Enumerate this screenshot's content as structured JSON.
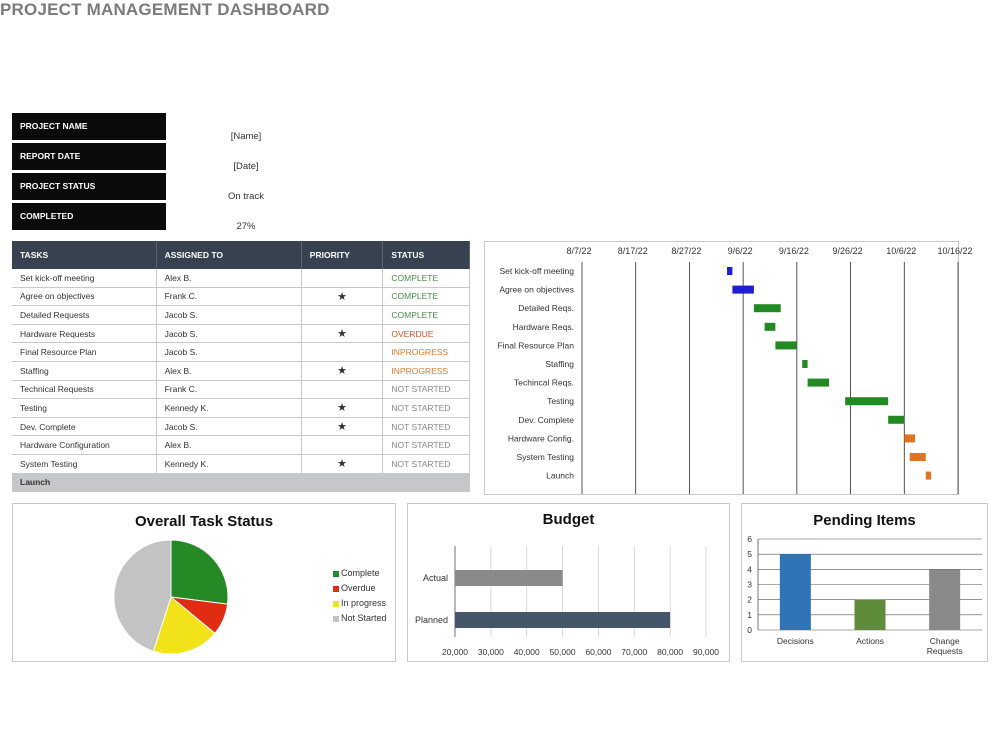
{
  "title": "PROJECT MANAGEMENT DASHBOARD",
  "info": [
    {
      "label": "PROJECT NAME",
      "value": "[Name]"
    },
    {
      "label": "REPORT DATE",
      "value": "[Date]"
    },
    {
      "label": "PROJECT STATUS",
      "value": "On track"
    },
    {
      "label": "COMPLETED",
      "value": "27%"
    }
  ],
  "tasks_table": {
    "headers": [
      "TASKS",
      "ASSIGNED TO",
      "PRIORITY",
      "STATUS"
    ],
    "rows": [
      {
        "task": "Set kick-off meeting",
        "assigned": "Alex B.",
        "priority": "",
        "status": "COMPLETE",
        "status_color": "#4a8a4a"
      },
      {
        "task": "Agree on objectives",
        "assigned": "Frank C.",
        "priority": "★",
        "status": "COMPLETE",
        "status_color": "#4a8a4a"
      },
      {
        "task": "Detailed Requests",
        "assigned": "Jacob S.",
        "priority": "",
        "status": "COMPLETE",
        "status_color": "#4a8a4a"
      },
      {
        "task": "Hardware Requests",
        "assigned": "Jacob S.",
        "priority": "★",
        "status": "OVERDUE",
        "status_color": "#d9531e"
      },
      {
        "task": "Final Resource Plan",
        "assigned": "Jacob S.",
        "priority": "",
        "status": "INPROGRESS",
        "status_color": "#e07b2e"
      },
      {
        "task": "Staffing",
        "assigned": "Alex B.",
        "priority": "★",
        "status": "INPROGRESS",
        "status_color": "#e07b2e"
      },
      {
        "task": "Technical Requests",
        "assigned": "Frank C.",
        "priority": "",
        "status": "NOT STARTED",
        "status_color": "#888888"
      },
      {
        "task": "Testing",
        "assigned": "Kennedy K.",
        "priority": "★",
        "status": "NOT STARTED",
        "status_color": "#888888"
      },
      {
        "task": "Dev. Complete",
        "assigned": "Jacob S.",
        "priority": "★",
        "status": "NOT STARTED",
        "status_color": "#888888"
      },
      {
        "task": "Hardware Configuration",
        "assigned": "Alex B.",
        "priority": "",
        "status": "NOT STARTED",
        "status_color": "#888888"
      },
      {
        "task": "System Testing",
        "assigned": "Kennedy K.",
        "priority": "★",
        "status": "NOT STARTED",
        "status_color": "#888888"
      },
      {
        "task": "Launch",
        "assigned": "",
        "priority": "",
        "status": "",
        "status_color": "#333333"
      }
    ]
  },
  "chart_data": [
    {
      "type": "gantt",
      "title": "",
      "x_ticks": [
        "8/7/22",
        "8/17/22",
        "8/27/22",
        "9/6/22",
        "9/16/22",
        "9/26/22",
        "10/6/22",
        "10/16/22"
      ],
      "x_range": [
        "8/7/22",
        "10/16/22"
      ],
      "grid": true,
      "tasks": [
        {
          "name": "Set kick-off meeting",
          "start": "9/3/22",
          "end": "9/4/22",
          "color": "#1f1fd1"
        },
        {
          "name": "Agree on objectives",
          "start": "9/4/22",
          "end": "9/8/22",
          "color": "#1f1fd1"
        },
        {
          "name": "Detailed Reqs.",
          "start": "9/8/22",
          "end": "9/13/22",
          "color": "#238a23"
        },
        {
          "name": "Hardware Reqs.",
          "start": "9/10/22",
          "end": "9/12/22",
          "color": "#238a23"
        },
        {
          "name": "Final Resource Plan",
          "start": "9/12/22",
          "end": "9/16/22",
          "color": "#238a23"
        },
        {
          "name": "Staffing",
          "start": "9/17/22",
          "end": "9/18/22",
          "color": "#238a23"
        },
        {
          "name": "Techincal Reqs.",
          "start": "9/18/22",
          "end": "9/22/22",
          "color": "#238a23"
        },
        {
          "name": "Testing",
          "start": "9/25/22",
          "end": "10/3/22",
          "color": "#238a23"
        },
        {
          "name": "Dev. Complete",
          "start": "10/3/22",
          "end": "10/6/22",
          "color": "#238a23"
        },
        {
          "name": "Hardware Config.",
          "start": "10/6/22",
          "end": "10/8/22",
          "color": "#e07420"
        },
        {
          "name": "System Testing",
          "start": "10/7/22",
          "end": "10/10/22",
          "color": "#e07420"
        },
        {
          "name": "Launch",
          "start": "10/10/22",
          "end": "10/11/22",
          "color": "#e07420"
        }
      ]
    },
    {
      "type": "pie",
      "title": "Overall Task Status",
      "legend": "right",
      "slices": [
        {
          "name": "Complete",
          "value": 27,
          "color": "#258a25"
        },
        {
          "name": "Overdue",
          "value": 9,
          "color": "#e12b12"
        },
        {
          "name": "In progress",
          "value": 19,
          "color": "#f2e219"
        },
        {
          "name": "Not Started",
          "value": 45,
          "color": "#c3c3c3"
        }
      ]
    },
    {
      "type": "bar",
      "orientation": "horizontal",
      "title": "Budget",
      "categories": [
        "Actual",
        "Planned"
      ],
      "values": [
        50000,
        80000
      ],
      "colors": [
        "#8a8a8a",
        "#46566a"
      ],
      "xlim": [
        20000,
        90000
      ],
      "x_ticks": [
        "20,000",
        "30,000",
        "40,000",
        "50,000",
        "60,000",
        "70,000",
        "80,000",
        "90,000"
      ],
      "grid": true
    },
    {
      "type": "bar",
      "title": "Pending Items",
      "categories": [
        "Decisions",
        "Actions",
        "Change Requests"
      ],
      "category_lines": [
        [
          "Decisions"
        ],
        [
          "Actions"
        ],
        [
          "Change",
          "Requests"
        ]
      ],
      "values": [
        5,
        2,
        4
      ],
      "colors": [
        "#2f74b5",
        "#5e8c3a",
        "#8a8a8a"
      ],
      "ylim": [
        0,
        6
      ],
      "y_ticks": [
        0,
        1,
        2,
        3,
        4,
        5,
        6
      ],
      "grid": true
    }
  ]
}
